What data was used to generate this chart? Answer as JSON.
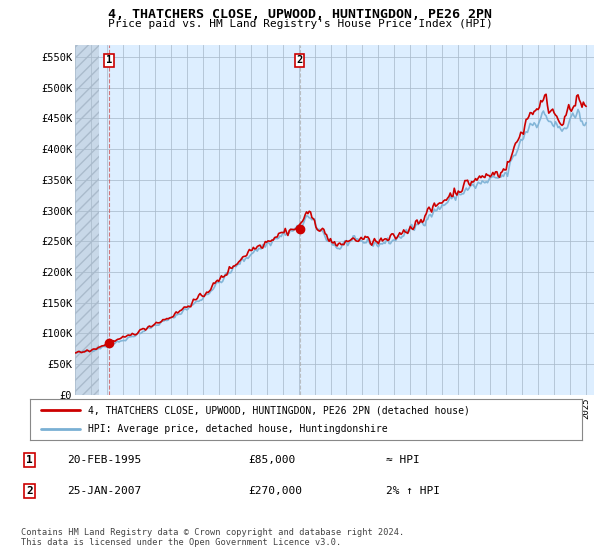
{
  "title": "4, THATCHERS CLOSE, UPWOOD, HUNTINGDON, PE26 2PN",
  "subtitle": "Price paid vs. HM Land Registry's House Price Index (HPI)",
  "ylabel_ticks": [
    "£0",
    "£50K",
    "£100K",
    "£150K",
    "£200K",
    "£250K",
    "£300K",
    "£350K",
    "£400K",
    "£450K",
    "£500K",
    "£550K"
  ],
  "ytick_values": [
    0,
    50000,
    100000,
    150000,
    200000,
    250000,
    300000,
    350000,
    400000,
    450000,
    500000,
    550000
  ],
  "ylim": [
    0,
    570000
  ],
  "xlim_start": 1993.0,
  "xlim_end": 2025.5,
  "sale1_x": 1995.12,
  "sale1_y": 85000,
  "sale2_x": 2007.07,
  "sale2_y": 270000,
  "red_color": "#cc0000",
  "blue_color": "#7ab0d4",
  "bg_plot_color": "#ddeeff",
  "hatch_fill_color": "#c8d8e8",
  "legend_label_red": "4, THATCHERS CLOSE, UPWOOD, HUNTINGDON, PE26 2PN (detached house)",
  "legend_label_blue": "HPI: Average price, detached house, Huntingdonshire",
  "table_row1": [
    "1",
    "20-FEB-1995",
    "£85,000",
    "≈ HPI"
  ],
  "table_row2": [
    "2",
    "25-JAN-2007",
    "£270,000",
    "2% ↑ HPI"
  ],
  "footer": "Contains HM Land Registry data © Crown copyright and database right 2024.\nThis data is licensed under the Open Government Licence v3.0.",
  "bg_color": "#ffffff",
  "grid_color": "#aabbcc"
}
